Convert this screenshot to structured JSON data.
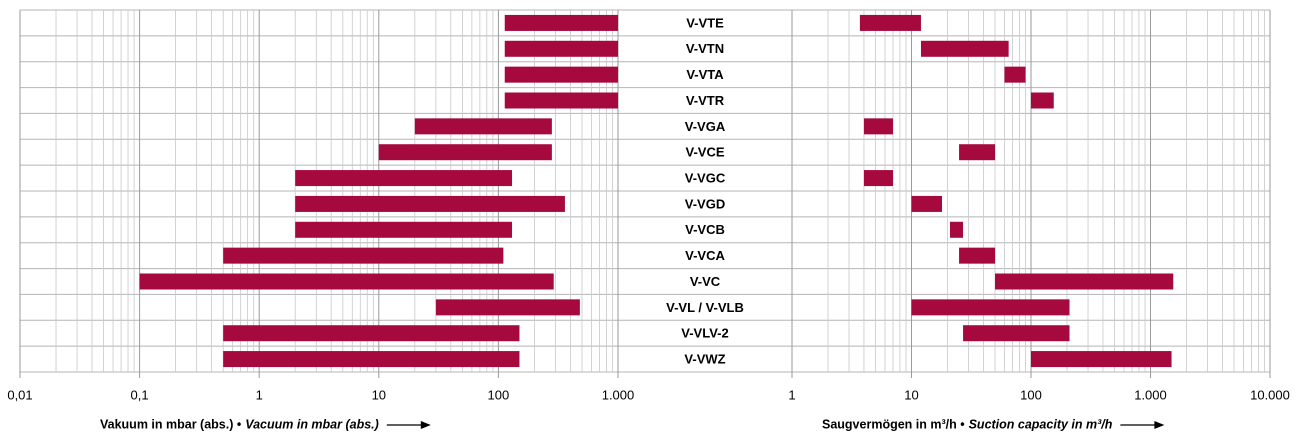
{
  "chart_data": {
    "type": "range_bar",
    "categories": [
      "V-VTE",
      "V-VTN",
      "V-VTA",
      "V-VTR",
      "V-VGA",
      "V-VCE",
      "V-VGC",
      "V-VGD",
      "V-VCB",
      "V-VCA",
      "V-VC",
      "V-VL / V-VLB",
      "V-VLV-2",
      "V-VWZ"
    ],
    "color": "#a6093d",
    "grid": true,
    "log_scale": true,
    "panels": [
      {
        "xlabel": "Vakuum in mbar (abs.) •",
        "xlabel_en": "Vacuum in mbar (abs.)",
        "xlim": [
          0.01,
          1000
        ],
        "xticks": [
          {
            "value": 0.01,
            "label": "0,01"
          },
          {
            "value": 0.1,
            "label": "0,1"
          },
          1,
          10,
          100,
          {
            "value": 1000,
            "label": "1.000"
          }
        ],
        "low": [
          113,
          113,
          113,
          113,
          20,
          10,
          2,
          2,
          2,
          0.5,
          0.1,
          30,
          0.5,
          0.5
        ],
        "high": [
          1000,
          1000,
          1000,
          1000,
          280,
          280,
          130,
          360,
          130,
          110,
          290,
          480,
          150,
          150
        ]
      },
      {
        "xlabel": "Saugvermögen in m³/h •",
        "xlabel_en": "Suction capacity in m³/h",
        "xlim": [
          1,
          10000
        ],
        "xticks": [
          1,
          10,
          100,
          {
            "value": 1000,
            "label": "1.000"
          },
          {
            "value": 10000,
            "label": "10.000"
          }
        ],
        "low": [
          3.7,
          12,
          60,
          100,
          4,
          25,
          4,
          10,
          21,
          25,
          50,
          10,
          27,
          100
        ],
        "high": [
          12,
          65,
          90,
          155,
          7,
          50,
          7,
          18,
          27,
          50,
          1550,
          210,
          210,
          1500
        ]
      }
    ]
  }
}
